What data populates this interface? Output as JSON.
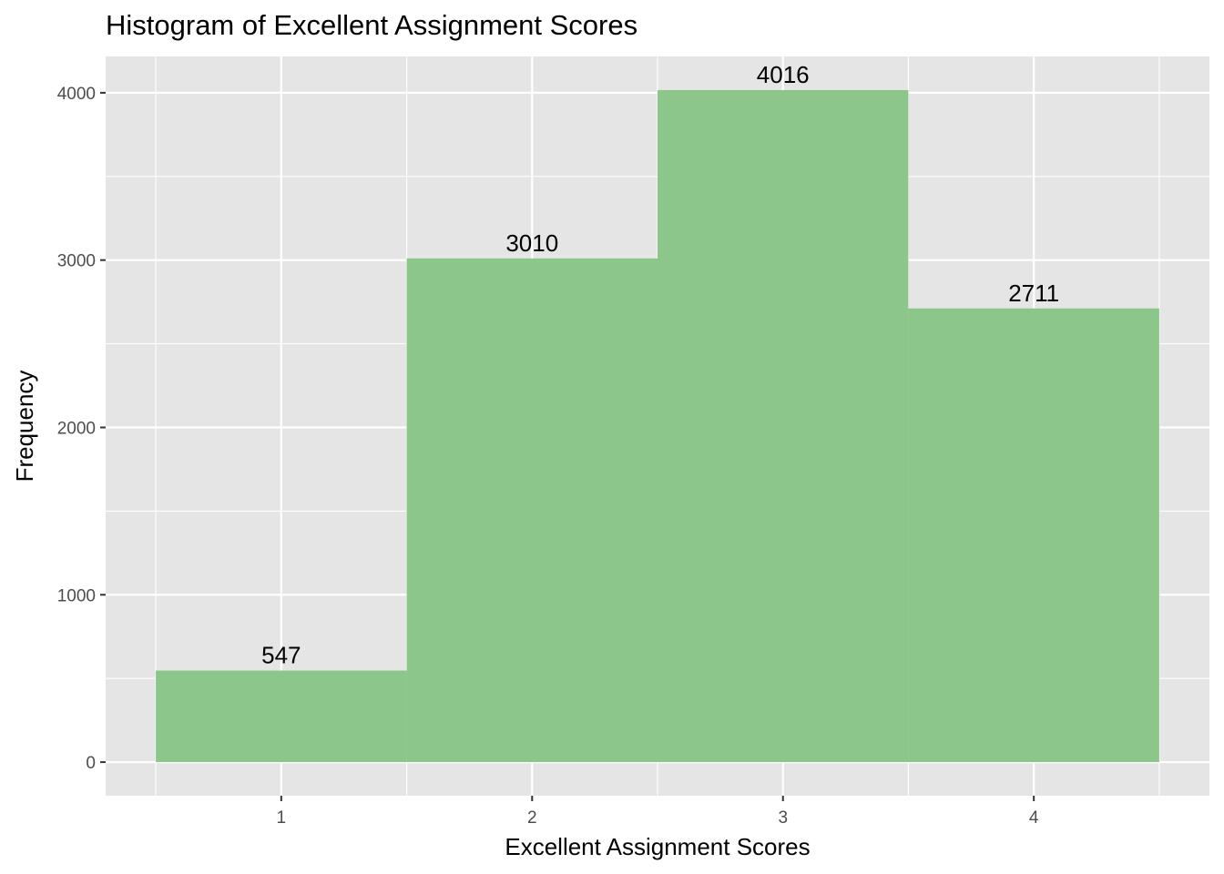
{
  "chart_data": {
    "type": "bar",
    "title": "Histogram of Excellent Assignment Scores",
    "xlabel": "Excellent Assignment Scores",
    "ylabel": "Frequency",
    "categories": [
      "1",
      "2",
      "3",
      "4"
    ],
    "values": [
      547,
      3010,
      4016,
      2711
    ],
    "data_labels": [
      "547",
      "3010",
      "4016",
      "2711"
    ],
    "x_ticks": [
      "1",
      "2",
      "3",
      "4"
    ],
    "y_ticks": [
      "0",
      "1000",
      "2000",
      "3000",
      "4000"
    ],
    "xlim": [
      0.3,
      4.7
    ],
    "ylim": [
      -200.8,
      4217.0
    ],
    "bar_color": "#8dc68a",
    "panel_color": "#e5e5e5",
    "grid_color": "#ffffff",
    "grid": true,
    "legend": "none"
  }
}
